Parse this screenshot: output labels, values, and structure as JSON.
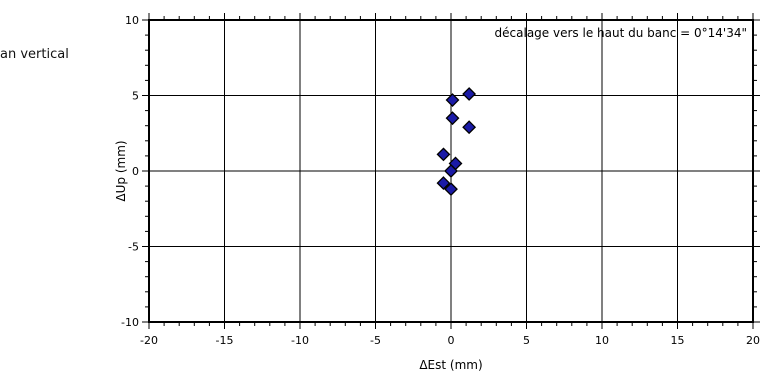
{
  "caption": "an vertical",
  "chart_data": {
    "type": "scatter",
    "xlabel": "ΔEst (mm)",
    "ylabel": "ΔUp (mm)",
    "xlim": [
      -20,
      20
    ],
    "ylim": [
      -10,
      10
    ],
    "x_ticks": [
      -20,
      -15,
      -10,
      -5,
      0,
      5,
      10,
      15,
      20
    ],
    "y_ticks": [
      -10,
      -5,
      0,
      5,
      10
    ],
    "grid": true,
    "annotation": "décalage vers le haut du banc = 0°14'34\"",
    "marker": "diamond",
    "marker_color": "#1a1aa6",
    "points": [
      {
        "x": 1.2,
        "y": 5.1
      },
      {
        "x": 0.1,
        "y": 4.7
      },
      {
        "x": 0.1,
        "y": 3.5
      },
      {
        "x": 1.2,
        "y": 2.9
      },
      {
        "x": -0.5,
        "y": 1.1
      },
      {
        "x": 0.3,
        "y": 0.5
      },
      {
        "x": 0.0,
        "y": 0.0
      },
      {
        "x": -0.5,
        "y": -0.8
      },
      {
        "x": 0.0,
        "y": -1.2
      }
    ]
  }
}
